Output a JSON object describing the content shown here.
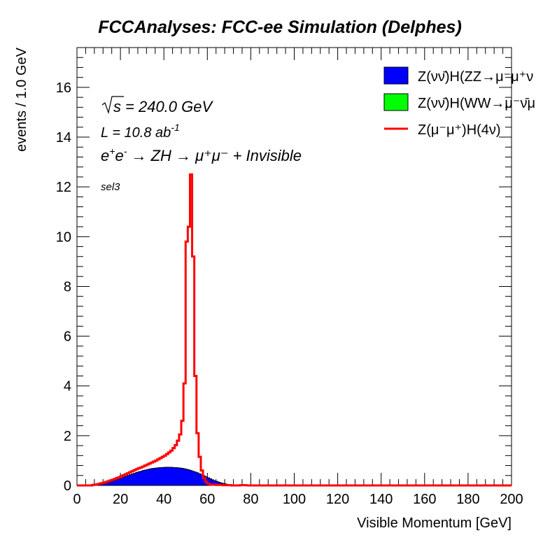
{
  "page_title": "FCCAnalyses: FCC-ee Simulation (Delphes)",
  "annotations": {
    "sqrt_s": "240.0 GeV",
    "lumi_prefix": "L = 10.8 ab",
    "lumi_exp": "-1",
    "process": "ZH → μ⁺μ⁻ + Invisible",
    "selection": "sel3"
  },
  "chart_data": {
    "type": "histogram",
    "xlabel": "Visible Momentum [GeV]",
    "ylabel": "events / 1.0 GeV",
    "xlim": [
      0,
      200
    ],
    "ylim": [
      0,
      17.6
    ],
    "x_ticks": [
      0,
      20,
      40,
      60,
      80,
      100,
      120,
      140,
      160,
      180,
      200
    ],
    "y_ticks": [
      0,
      2,
      4,
      6,
      8,
      10,
      12,
      14,
      16
    ],
    "bin_width": 1.0,
    "grid": false,
    "legend_position": "top-right",
    "legend": [
      {
        "label": "Z(νν̄)H(ZZ→μ⁻μ⁺ν",
        "style": "fill",
        "color": "#0000ff"
      },
      {
        "label": "Z(νν̄)H(WW→μ⁻ν̄μ",
        "style": "fill",
        "color": "#00ff00"
      },
      {
        "label": "Z(μ⁻μ⁺)H(4ν)",
        "style": "line",
        "color": "#ff0000"
      }
    ],
    "series": [
      {
        "name": "Z(νν̄)H(ZZ→μ⁻μ⁺ν",
        "style": "filled-step",
        "color": "#0000ff",
        "x_start": 0,
        "values": [
          0,
          0,
          0,
          0,
          0,
          0,
          0,
          0.01,
          0.02,
          0.03,
          0.04,
          0.06,
          0.08,
          0.1,
          0.12,
          0.15,
          0.18,
          0.21,
          0.24,
          0.27,
          0.3,
          0.34,
          0.37,
          0.4,
          0.43,
          0.46,
          0.49,
          0.52,
          0.55,
          0.57,
          0.6,
          0.62,
          0.64,
          0.66,
          0.68,
          0.69,
          0.7,
          0.71,
          0.72,
          0.72,
          0.73,
          0.73,
          0.73,
          0.73,
          0.72,
          0.72,
          0.71,
          0.7,
          0.69,
          0.67,
          0.65,
          0.63,
          0.6,
          0.57,
          0.54,
          0.51,
          0.47,
          0.43,
          0.39,
          0.35,
          0.31,
          0.27,
          0.23,
          0.19,
          0.16,
          0.13,
          0.1,
          0.08,
          0.06,
          0.04,
          0.03,
          0.02,
          0.01,
          0.01,
          0.005
        ]
      },
      {
        "name": "Z(νν̄)H(WW→μ⁻ν̄μ",
        "style": "filled-step",
        "color": "#00ff00",
        "x_start": 0,
        "values": []
      },
      {
        "name": "Z(μ⁻μ⁺)H(4ν)",
        "style": "line-step",
        "color": "#ff0000",
        "x_start": 0,
        "values": [
          0,
          0,
          0,
          0,
          0,
          0,
          0,
          0.02,
          0.03,
          0.05,
          0.07,
          0.09,
          0.11,
          0.14,
          0.17,
          0.2,
          0.23,
          0.26,
          0.3,
          0.33,
          0.37,
          0.41,
          0.45,
          0.49,
          0.53,
          0.57,
          0.61,
          0.65,
          0.69,
          0.72,
          0.76,
          0.8,
          0.84,
          0.88,
          0.92,
          0.96,
          1.0,
          1.05,
          1.1,
          1.15,
          1.2,
          1.26,
          1.33,
          1.4,
          1.5,
          1.62,
          1.8,
          2.05,
          2.6,
          4.1,
          9.8,
          10.4,
          12.5,
          9.2,
          4.4,
          2.1,
          1.15,
          0.6,
          0.3,
          0.14,
          0.07,
          0.04,
          0.03,
          0.03,
          0.02,
          0.02,
          0.02,
          0.01,
          0.01,
          0.01,
          0.01,
          0,
          0,
          0,
          0,
          0.01,
          0.01,
          0.01
        ]
      }
    ]
  }
}
